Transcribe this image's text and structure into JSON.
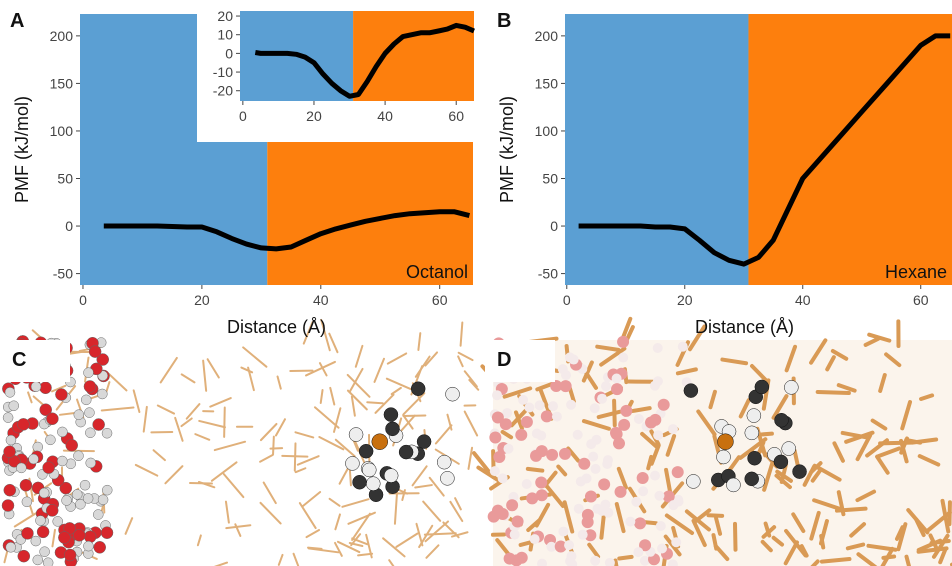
{
  "chart_data": [
    {
      "type": "line",
      "label": "A",
      "xlabel": "Distance (Å)",
      "ylabel": "PMF (kJ/mol)",
      "annotation": "Octanol",
      "xlim": [
        -0.5,
        65.6
      ],
      "ylim": [
        -62,
        223
      ],
      "xticks": [
        0,
        20,
        40,
        60
      ],
      "yticks": [
        -50,
        0,
        50,
        100,
        150,
        200
      ],
      "regions": [
        {
          "start": -0.5,
          "end": 31,
          "color": "#5b9fd3"
        },
        {
          "start": 31,
          "end": 65.6,
          "color": "#fd7f0d"
        }
      ],
      "color": "#000000",
      "x": [
        3.5,
        5,
        7.5,
        10,
        12.5,
        15,
        17.5,
        20,
        22.5,
        25,
        27.5,
        30,
        32.5,
        35,
        37.5,
        40,
        42.5,
        45,
        47.5,
        50,
        52.5,
        55,
        57.5,
        60,
        62.5,
        65
      ],
      "values": [
        0,
        0,
        0,
        0,
        0,
        -0.5,
        -1,
        -1,
        -6,
        -13,
        -19,
        -23,
        -24,
        -22,
        -15,
        -8,
        -3,
        1,
        5,
        8,
        11,
        13,
        14,
        15,
        15,
        11
      ]
    },
    {
      "type": "line",
      "xlim": [
        -0.8,
        65
      ],
      "ylim": [
        -25.5,
        22.7
      ],
      "xticks": [
        0,
        20,
        40,
        60
      ],
      "yticks": [
        -20,
        -10,
        0,
        10,
        20
      ],
      "regions": [
        {
          "start": -0.8,
          "end": 31,
          "color": "#5b9fd3"
        },
        {
          "start": 31,
          "end": 65,
          "color": "#fd7f0d"
        }
      ],
      "color": "#000000",
      "x": [
        3.5,
        5,
        7.5,
        10,
        12.5,
        15,
        17.5,
        20,
        22.5,
        25,
        27.5,
        30,
        32.5,
        35,
        37.5,
        40,
        42.5,
        45,
        47.5,
        50,
        52.5,
        55,
        57.5,
        60,
        62.5,
        65
      ],
      "values": [
        0.5,
        0,
        0,
        0,
        0,
        -0.5,
        -2,
        -5,
        -11,
        -16,
        -20,
        -23,
        -22,
        -15,
        -7,
        0,
        5,
        9,
        10,
        11,
        11,
        12,
        13,
        15,
        14,
        12
      ]
    },
    {
      "type": "line",
      "label": "B",
      "xlabel": "Distance (Å)",
      "ylabel": "PMF (kJ/mol)",
      "annotation": "Hexane",
      "xlim": [
        -0.3,
        65.3
      ],
      "ylim": [
        -62,
        223
      ],
      "xticks": [
        0,
        20,
        40,
        60
      ],
      "yticks": [
        -50,
        0,
        50,
        100,
        150,
        200
      ],
      "regions": [
        {
          "start": -0.3,
          "end": 30.8,
          "color": "#5b9fd3"
        },
        {
          "start": 30.8,
          "end": 65.3,
          "color": "#fd7f0d"
        }
      ],
      "color": "#000000",
      "x": [
        2,
        5,
        7.5,
        10,
        12.5,
        15,
        17.5,
        20,
        22.5,
        25,
        27.5,
        30,
        32.5,
        35,
        40,
        45,
        50,
        55,
        60,
        62.5,
        65
      ],
      "values": [
        0,
        0,
        0,
        0,
        0,
        -1,
        -1,
        -3,
        -15,
        -28,
        -36,
        -40,
        -33,
        -15,
        50,
        85,
        120,
        155,
        190,
        200,
        200
      ]
    }
  ],
  "panels": {
    "c": {
      "label": "C"
    },
    "d": {
      "label": "D"
    }
  }
}
